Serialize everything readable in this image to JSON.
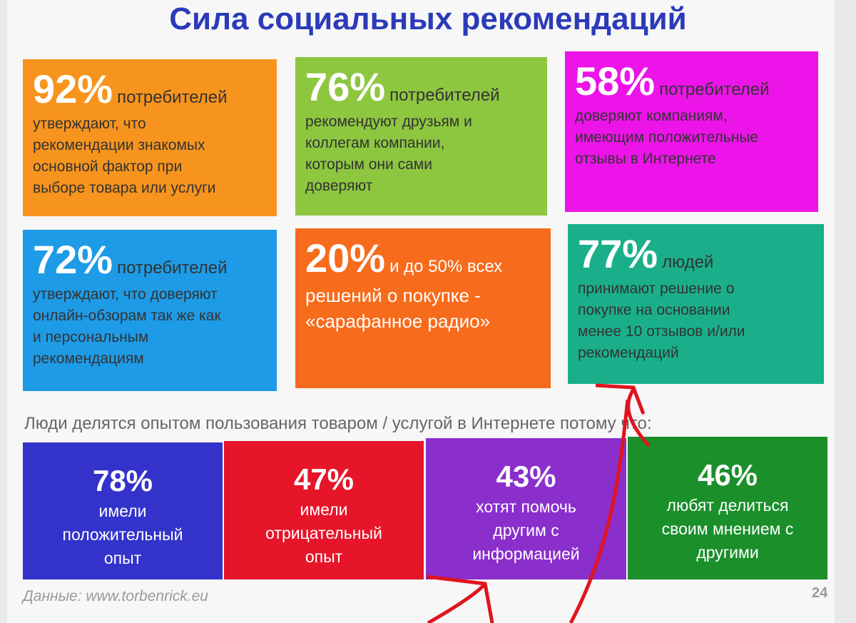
{
  "title": "Сила социальных рекомендаций",
  "tiles": [
    {
      "percent": "92%",
      "lead": "потребителей",
      "lines": [
        "утверждают, что",
        "рекомендации знакомых",
        "основной фактор при",
        "выборе товара или услуги"
      ]
    },
    {
      "percent": "76%",
      "lead": "потребителей",
      "lines": [
        "рекомендуют друзьям и",
        "коллегам компании,",
        "которым они сами",
        "доверяют"
      ]
    },
    {
      "percent": "58%",
      "lead": "потребителей",
      "lines": [
        "доверяют компаниям,",
        "имеющим положительные",
        "отзывы в Интернете"
      ]
    },
    {
      "percent": "72%",
      "lead": "потребителей",
      "lines": [
        "утверждают, что доверяют",
        "онлайн-обзорам так же как",
        "и персональным",
        "рекомендациям"
      ]
    },
    {
      "percent": "20%",
      "lead": "и до 50% всех",
      "lines": [
        "решений о покупке  -",
        "«сарафанное радио»"
      ]
    },
    {
      "percent": "77%",
      "lead": "людей",
      "lines": [
        "принимают решение о",
        "покупке на основании",
        "менее 10 отзывов и/или",
        "рекомендаций"
      ]
    }
  ],
  "subtitle": "Люди делятся опытом пользования товаром / услугой в Интернете потому что:",
  "reasons": [
    {
      "percent": "78%",
      "lines": [
        "имели",
        "положительный",
        "опыт"
      ]
    },
    {
      "percent": "47%",
      "lines": [
        "имели",
        "отрицательный",
        "опыт"
      ]
    },
    {
      "percent": "43%",
      "lines": [
        "хотят помочь",
        "другим с",
        "информацией"
      ]
    },
    {
      "percent": "46%",
      "lines": [
        "любят делиться",
        "своим мнением с",
        "другими"
      ]
    }
  ],
  "source": "Данные: www.torbenrick.eu",
  "page_number": "24"
}
